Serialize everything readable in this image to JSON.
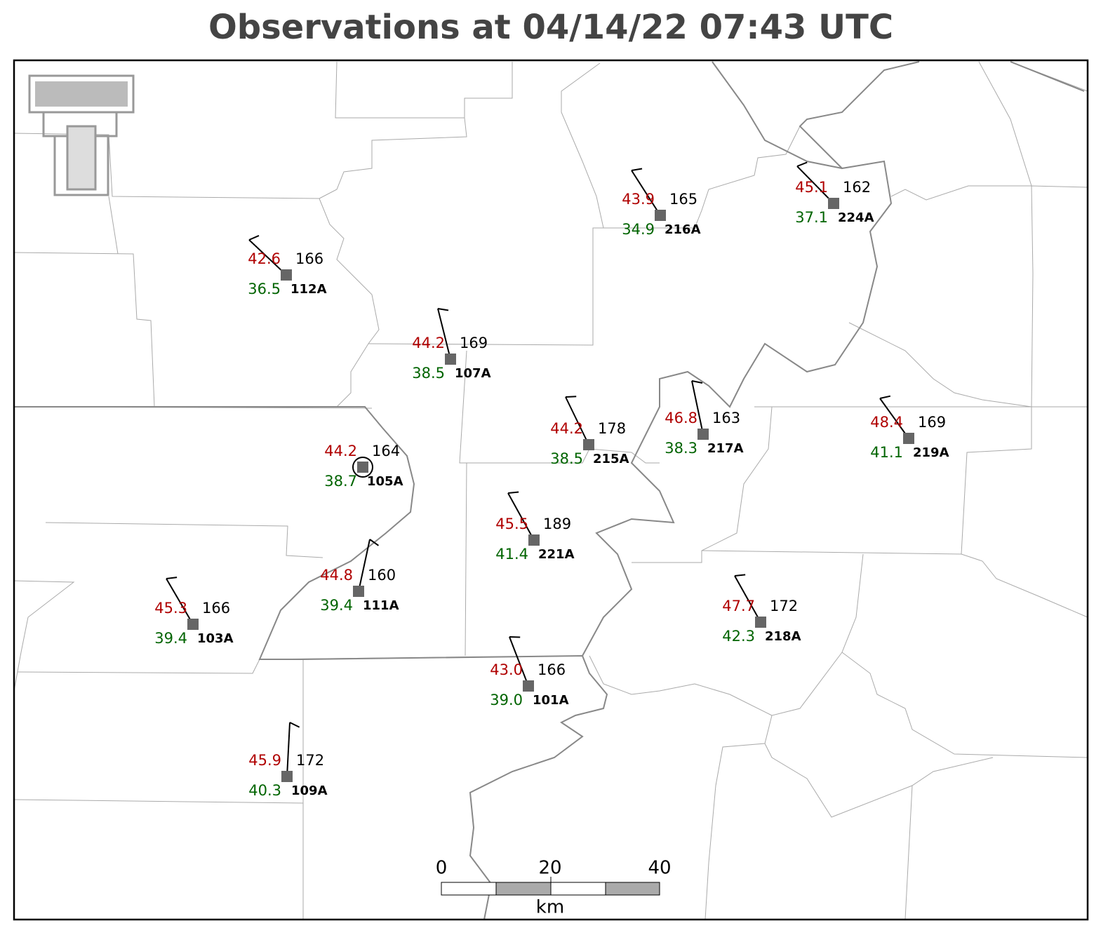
{
  "title": "Observations at 04/14/22 07:43 UTC",
  "stations": [
    {
      "id": "112A",
      "temperature": "42.6",
      "dewpoint": "36.5",
      "pressure": "166"
    },
    {
      "id": "107A",
      "temperature": "44.2",
      "dewpoint": "38.5",
      "pressure": "169"
    },
    {
      "id": "216A",
      "temperature": "43.9",
      "dewpoint": "34.9",
      "pressure": "165"
    },
    {
      "id": "224A",
      "temperature": "45.1",
      "dewpoint": "37.1",
      "pressure": "162"
    },
    {
      "id": "105A",
      "temperature": "44.2",
      "dewpoint": "38.7",
      "pressure": "164"
    },
    {
      "id": "215A",
      "temperature": "44.2",
      "dewpoint": "38.5",
      "pressure": "178"
    },
    {
      "id": "217A",
      "temperature": "46.8",
      "dewpoint": "38.3",
      "pressure": "163"
    },
    {
      "id": "219A",
      "temperature": "48.4",
      "dewpoint": "41.1",
      "pressure": "169"
    },
    {
      "id": "221A",
      "temperature": "45.5",
      "dewpoint": "41.4",
      "pressure": "189"
    },
    {
      "id": "111A",
      "temperature": "44.8",
      "dewpoint": "39.4",
      "pressure": "160"
    },
    {
      "id": "103A",
      "temperature": "45.3",
      "dewpoint": "39.4",
      "pressure": "166"
    },
    {
      "id": "218A",
      "temperature": "47.7",
      "dewpoint": "42.3",
      "pressure": "172"
    },
    {
      "id": "101A",
      "temperature": "43.0",
      "dewpoint": "39.0",
      "pressure": "166"
    },
    {
      "id": "109A",
      "temperature": "45.9",
      "dewpoint": "40.3",
      "pressure": "172"
    }
  ],
  "scale_bar": {
    "labels": [
      "0",
      "20",
      "40"
    ],
    "unit": "km"
  }
}
